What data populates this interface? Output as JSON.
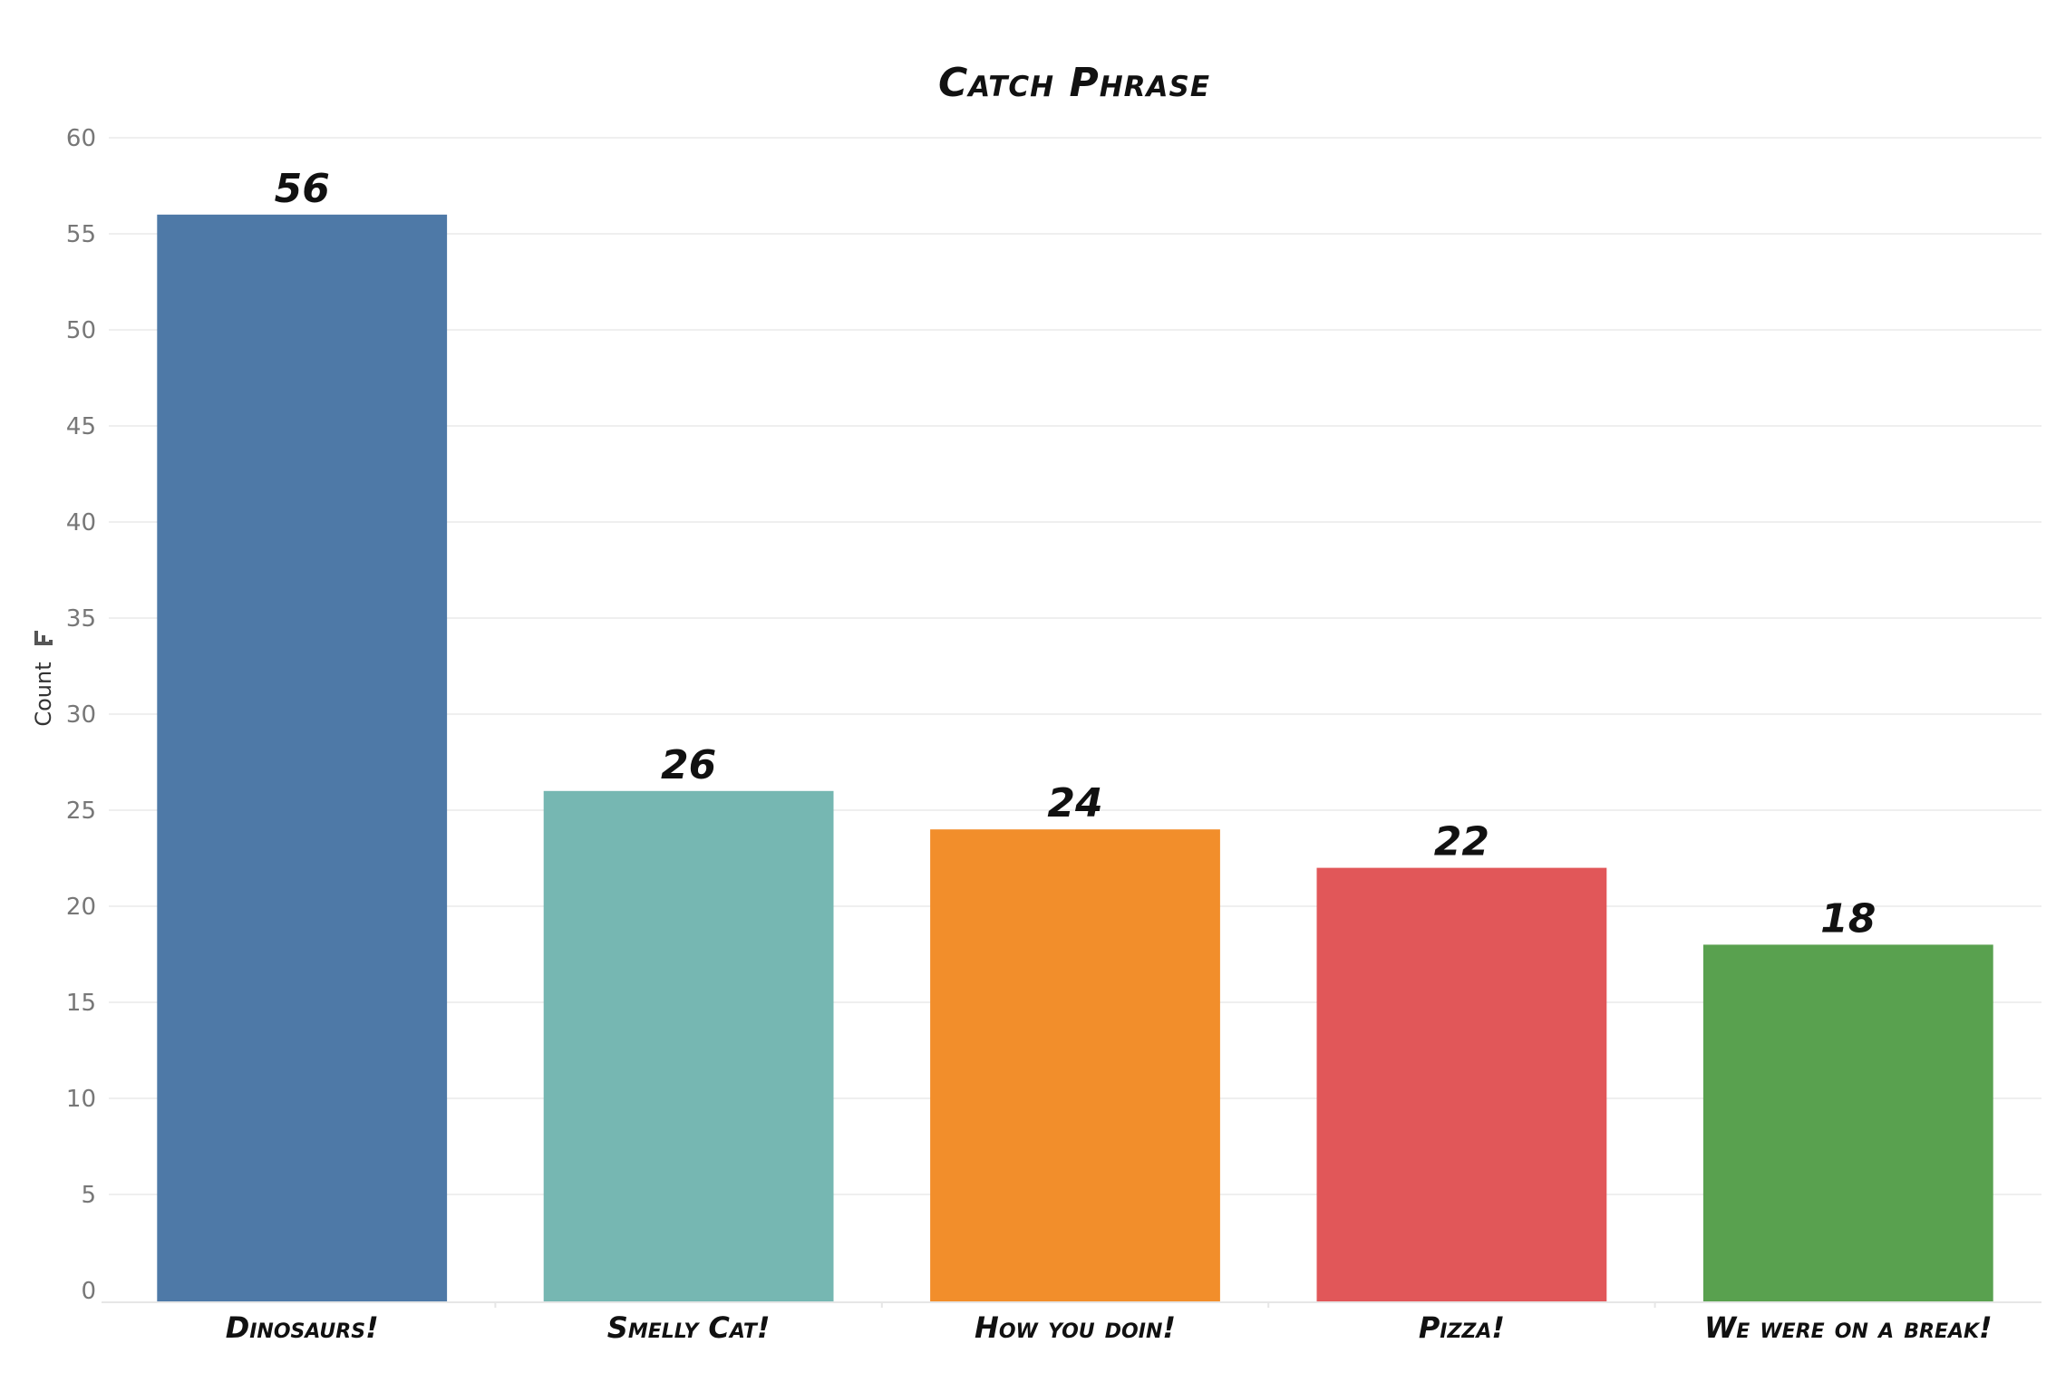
{
  "chart_data": {
    "type": "bar",
    "title": "Catch Phrase",
    "xlabel": "",
    "ylabel": "Count",
    "ylim": [
      0,
      60
    ],
    "yticks": [
      0,
      5,
      10,
      15,
      20,
      25,
      30,
      35,
      40,
      45,
      50,
      55,
      60
    ],
    "grid": true,
    "categories": [
      "Dinosaurs!",
      "Smelly Cat!",
      "How you doin!",
      "Pizza!",
      "We were on a break!"
    ],
    "values": [
      56,
      26,
      24,
      22,
      18
    ],
    "colors": [
      "#4e79a7",
      "#76b7b2",
      "#f28e2b",
      "#e15759",
      "#59a14f"
    ],
    "data_labels": [
      "56",
      "26",
      "24",
      "22",
      "18"
    ],
    "ylabel_icon": "sort-icon"
  }
}
